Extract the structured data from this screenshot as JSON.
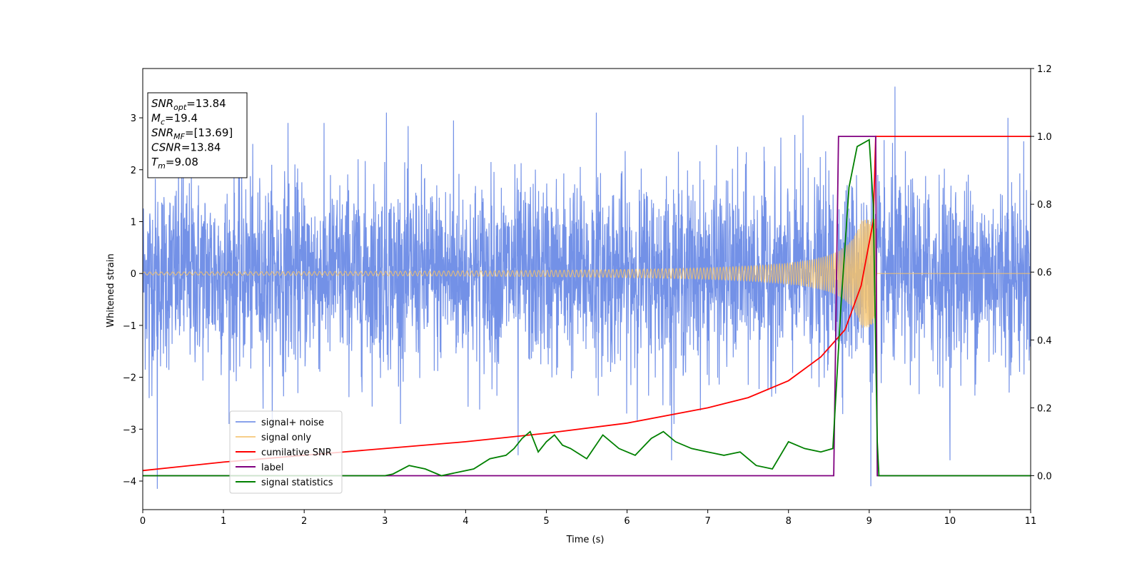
{
  "chart_data": {
    "type": "line",
    "title": "",
    "xlabel": "Time (s)",
    "ylabel": "Whitened strain",
    "y2label": "",
    "xlim": [
      0,
      11
    ],
    "ylim": [
      -4.55,
      3.95
    ],
    "y2lim": [
      -0.1,
      1.2
    ],
    "x_ticks": [
      0,
      1,
      2,
      3,
      4,
      5,
      6,
      7,
      8,
      9,
      10,
      11
    ],
    "y_ticks": [
      -4,
      -3,
      -2,
      -1,
      0,
      1,
      2,
      3
    ],
    "y2_ticks": [
      0.0,
      0.2,
      0.4,
      0.6,
      0.8,
      1.0,
      1.2
    ],
    "grid": false,
    "legend_position": "lower-left",
    "colors": {
      "signal_noise": "#6b8be6",
      "signal_only": "#f5c26b",
      "cumulative_snr": "#ff0000",
      "label": "#800080",
      "statistics": "#008000"
    },
    "info_box": {
      "lines": [
        {
          "sym": "SNR",
          "sub": "opt",
          "val": "=13.84"
        },
        {
          "sym": "M",
          "sub": "c",
          "val": "=19.4"
        },
        {
          "sym": "SNR",
          "sub": "MF",
          "val": "=[13.69]"
        },
        {
          "sym": "CSNR",
          "sub": "",
          "val": "=13.84"
        },
        {
          "sym": "T",
          "sub": "m",
          "val": "=9.08"
        }
      ]
    },
    "series": [
      {
        "name": "signal+ noise",
        "axis": "left",
        "kind": "noise",
        "std": 0.9,
        "peaks": [
          {
            "x": 0.08,
            "y": -2.4
          },
          {
            "x": 0.18,
            "y": -4.15
          },
          {
            "x": 0.5,
            "y": 2.7
          },
          {
            "x": 1.8,
            "y": 2.9
          },
          {
            "x": 3.02,
            "y": 3.1
          },
          {
            "x": 3.85,
            "y": 2.95
          },
          {
            "x": 4.65,
            "y": -3.5
          },
          {
            "x": 5.62,
            "y": 3.1
          },
          {
            "x": 6.55,
            "y": -3.6
          },
          {
            "x": 8.18,
            "y": 3.05
          },
          {
            "x": 8.58,
            "y": -1.0
          },
          {
            "x": 9.02,
            "y": -4.1
          },
          {
            "x": 9.32,
            "y": 3.6
          },
          {
            "x": 10.0,
            "y": -3.6
          },
          {
            "x": 10.72,
            "y": 3.0
          }
        ]
      },
      {
        "name": "signal only",
        "axis": "left",
        "kind": "chirp",
        "t_merge": 9.08,
        "start_amp": 0.03,
        "end_amp": 1.05
      },
      {
        "name": "cumilative SNR",
        "axis": "right",
        "x": [
          0,
          1,
          2,
          3,
          4,
          5,
          6,
          7,
          7.5,
          8,
          8.4,
          8.7,
          8.9,
          9.05,
          9.08,
          11
        ],
        "y": [
          0.015,
          0.04,
          0.06,
          0.08,
          0.1,
          0.125,
          0.155,
          0.2,
          0.23,
          0.28,
          0.35,
          0.43,
          0.56,
          0.75,
          1.0,
          1.0
        ]
      },
      {
        "name": "label",
        "axis": "right",
        "x": [
          0,
          8.56,
          8.62,
          9.08,
          9.1,
          11
        ],
        "y": [
          0,
          0,
          1,
          1,
          0,
          0
        ]
      },
      {
        "name": "signal statistics",
        "axis": "right",
        "x": [
          0,
          3.0,
          3.1,
          3.3,
          3.5,
          3.7,
          3.9,
          4.1,
          4.3,
          4.5,
          4.6,
          4.7,
          4.8,
          4.9,
          5.0,
          5.1,
          5.2,
          5.3,
          5.5,
          5.7,
          5.9,
          6.1,
          6.3,
          6.45,
          6.6,
          6.8,
          7.0,
          7.2,
          7.4,
          7.6,
          7.8,
          8.0,
          8.2,
          8.4,
          8.55,
          8.65,
          8.75,
          8.85,
          9.0,
          9.05,
          9.1,
          9.12,
          11
        ],
        "y": [
          0,
          0.0,
          0.005,
          0.03,
          0.02,
          0.0,
          0.01,
          0.02,
          0.05,
          0.06,
          0.08,
          0.11,
          0.13,
          0.07,
          0.1,
          0.12,
          0.09,
          0.08,
          0.05,
          0.12,
          0.08,
          0.06,
          0.11,
          0.13,
          0.1,
          0.08,
          0.07,
          0.06,
          0.07,
          0.03,
          0.02,
          0.1,
          0.08,
          0.07,
          0.08,
          0.5,
          0.85,
          0.97,
          0.99,
          0.8,
          0.1,
          0.0,
          0.0
        ]
      }
    ]
  }
}
